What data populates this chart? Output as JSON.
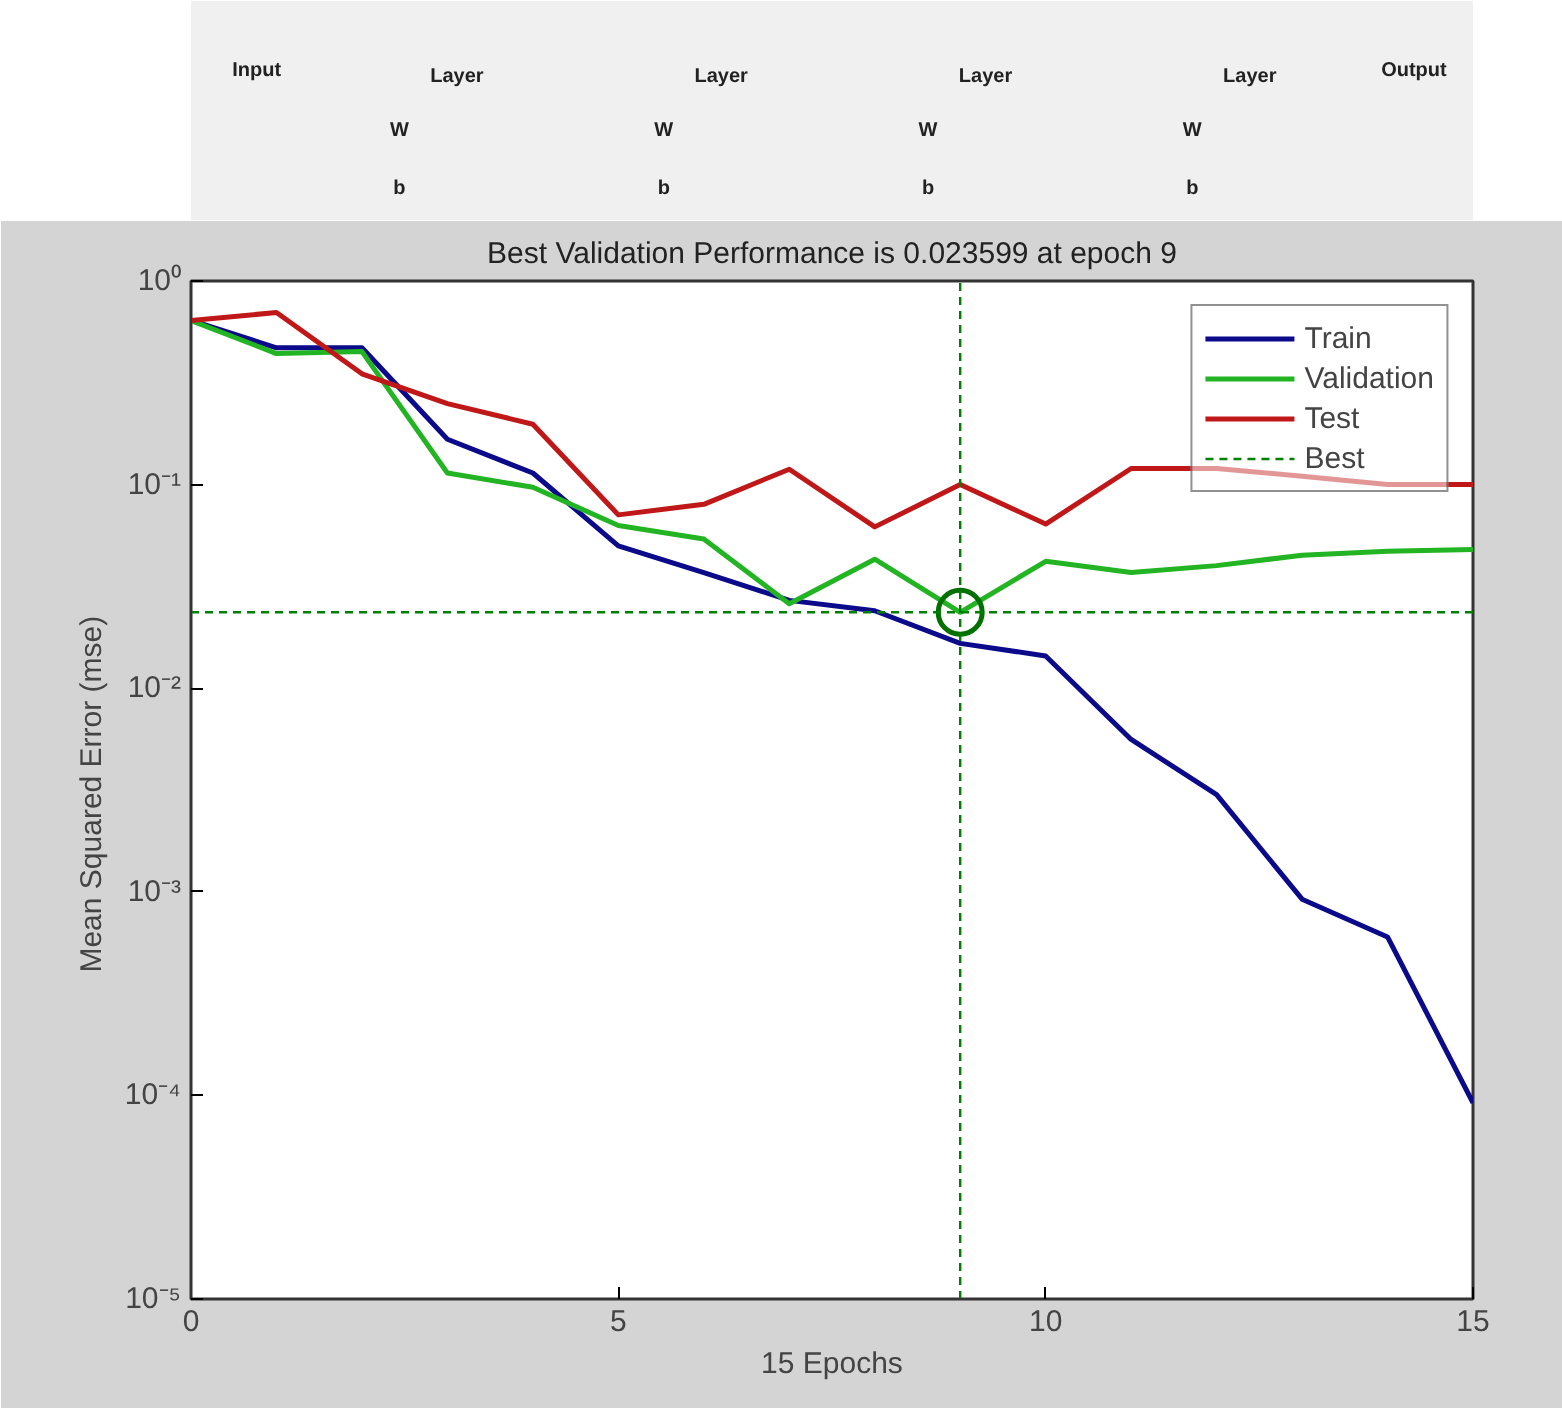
{
  "chart_data": {
    "type": "line",
    "title": "Best Validation Performance is 0.023599 at epoch 9",
    "xlabel": "15 Epochs",
    "ylabel": "Mean Squared Error  (mse)",
    "x": [
      0,
      1,
      2,
      3,
      4,
      5,
      6,
      7,
      8,
      9,
      10,
      11,
      12,
      13,
      14,
      15
    ],
    "series": [
      {
        "name": "Train",
        "color": "#0a0a8a",
        "values": [
          0.64,
          0.47,
          0.47,
          0.167,
          0.114,
          0.05,
          0.037,
          0.027,
          0.024,
          0.0166,
          0.0144,
          0.0056,
          0.003,
          0.00092,
          0.0006,
          9.2e-05
        ]
      },
      {
        "name": "Validation",
        "color": "#22b422",
        "values": [
          0.64,
          0.44,
          0.45,
          0.114,
          0.097,
          0.063,
          0.054,
          0.026,
          0.043,
          0.023599,
          0.042,
          0.037,
          0.04,
          0.045,
          0.047,
          0.048
        ]
      },
      {
        "name": "Test",
        "color": "#c01818",
        "values": [
          0.64,
          0.7,
          0.35,
          0.25,
          0.198,
          0.071,
          0.08,
          0.119,
          0.062,
          0.1,
          0.064,
          0.12,
          0.12,
          0.11,
          0.1,
          0.1
        ]
      },
      {
        "type": "scatter",
        "marker": "circle",
        "color": "#007000",
        "x": [
          9
        ],
        "values": [
          0.023599
        ]
      }
    ],
    "ref_lines": [
      {
        "axis": "y",
        "value": 0.023599,
        "label": "Best",
        "color": "#008000",
        "line_style": "dashed"
      },
      {
        "axis": "x",
        "value": 9,
        "color": "#008000",
        "line_style": "dashed"
      }
    ],
    "log": "y",
    "grid": false,
    "legend": "top right",
    "line_style": "solid",
    "xlim": [
      0,
      15
    ],
    "xticks": [
      0,
      5,
      10,
      15
    ],
    "ylim": [
      1e-05,
      1
    ],
    "yticks": [
      {
        "value": 1,
        "label": "10⁰"
      },
      {
        "value": 0.1,
        "label": "10⁻¹"
      },
      {
        "value": 0.01,
        "label": "10⁻²"
      },
      {
        "value": 0.001,
        "label": "10⁻³"
      },
      {
        "value": 0.0001,
        "label": "10⁻⁴"
      },
      {
        "value": 1e-05,
        "label": "10⁻⁵"
      }
    ],
    "annotations": [
      "Input",
      "Layer",
      "W",
      "b",
      "Layer",
      "W",
      "b",
      "Layer",
      "W",
      "b",
      "Layer",
      "W",
      "b",
      "Output"
    ]
  }
}
